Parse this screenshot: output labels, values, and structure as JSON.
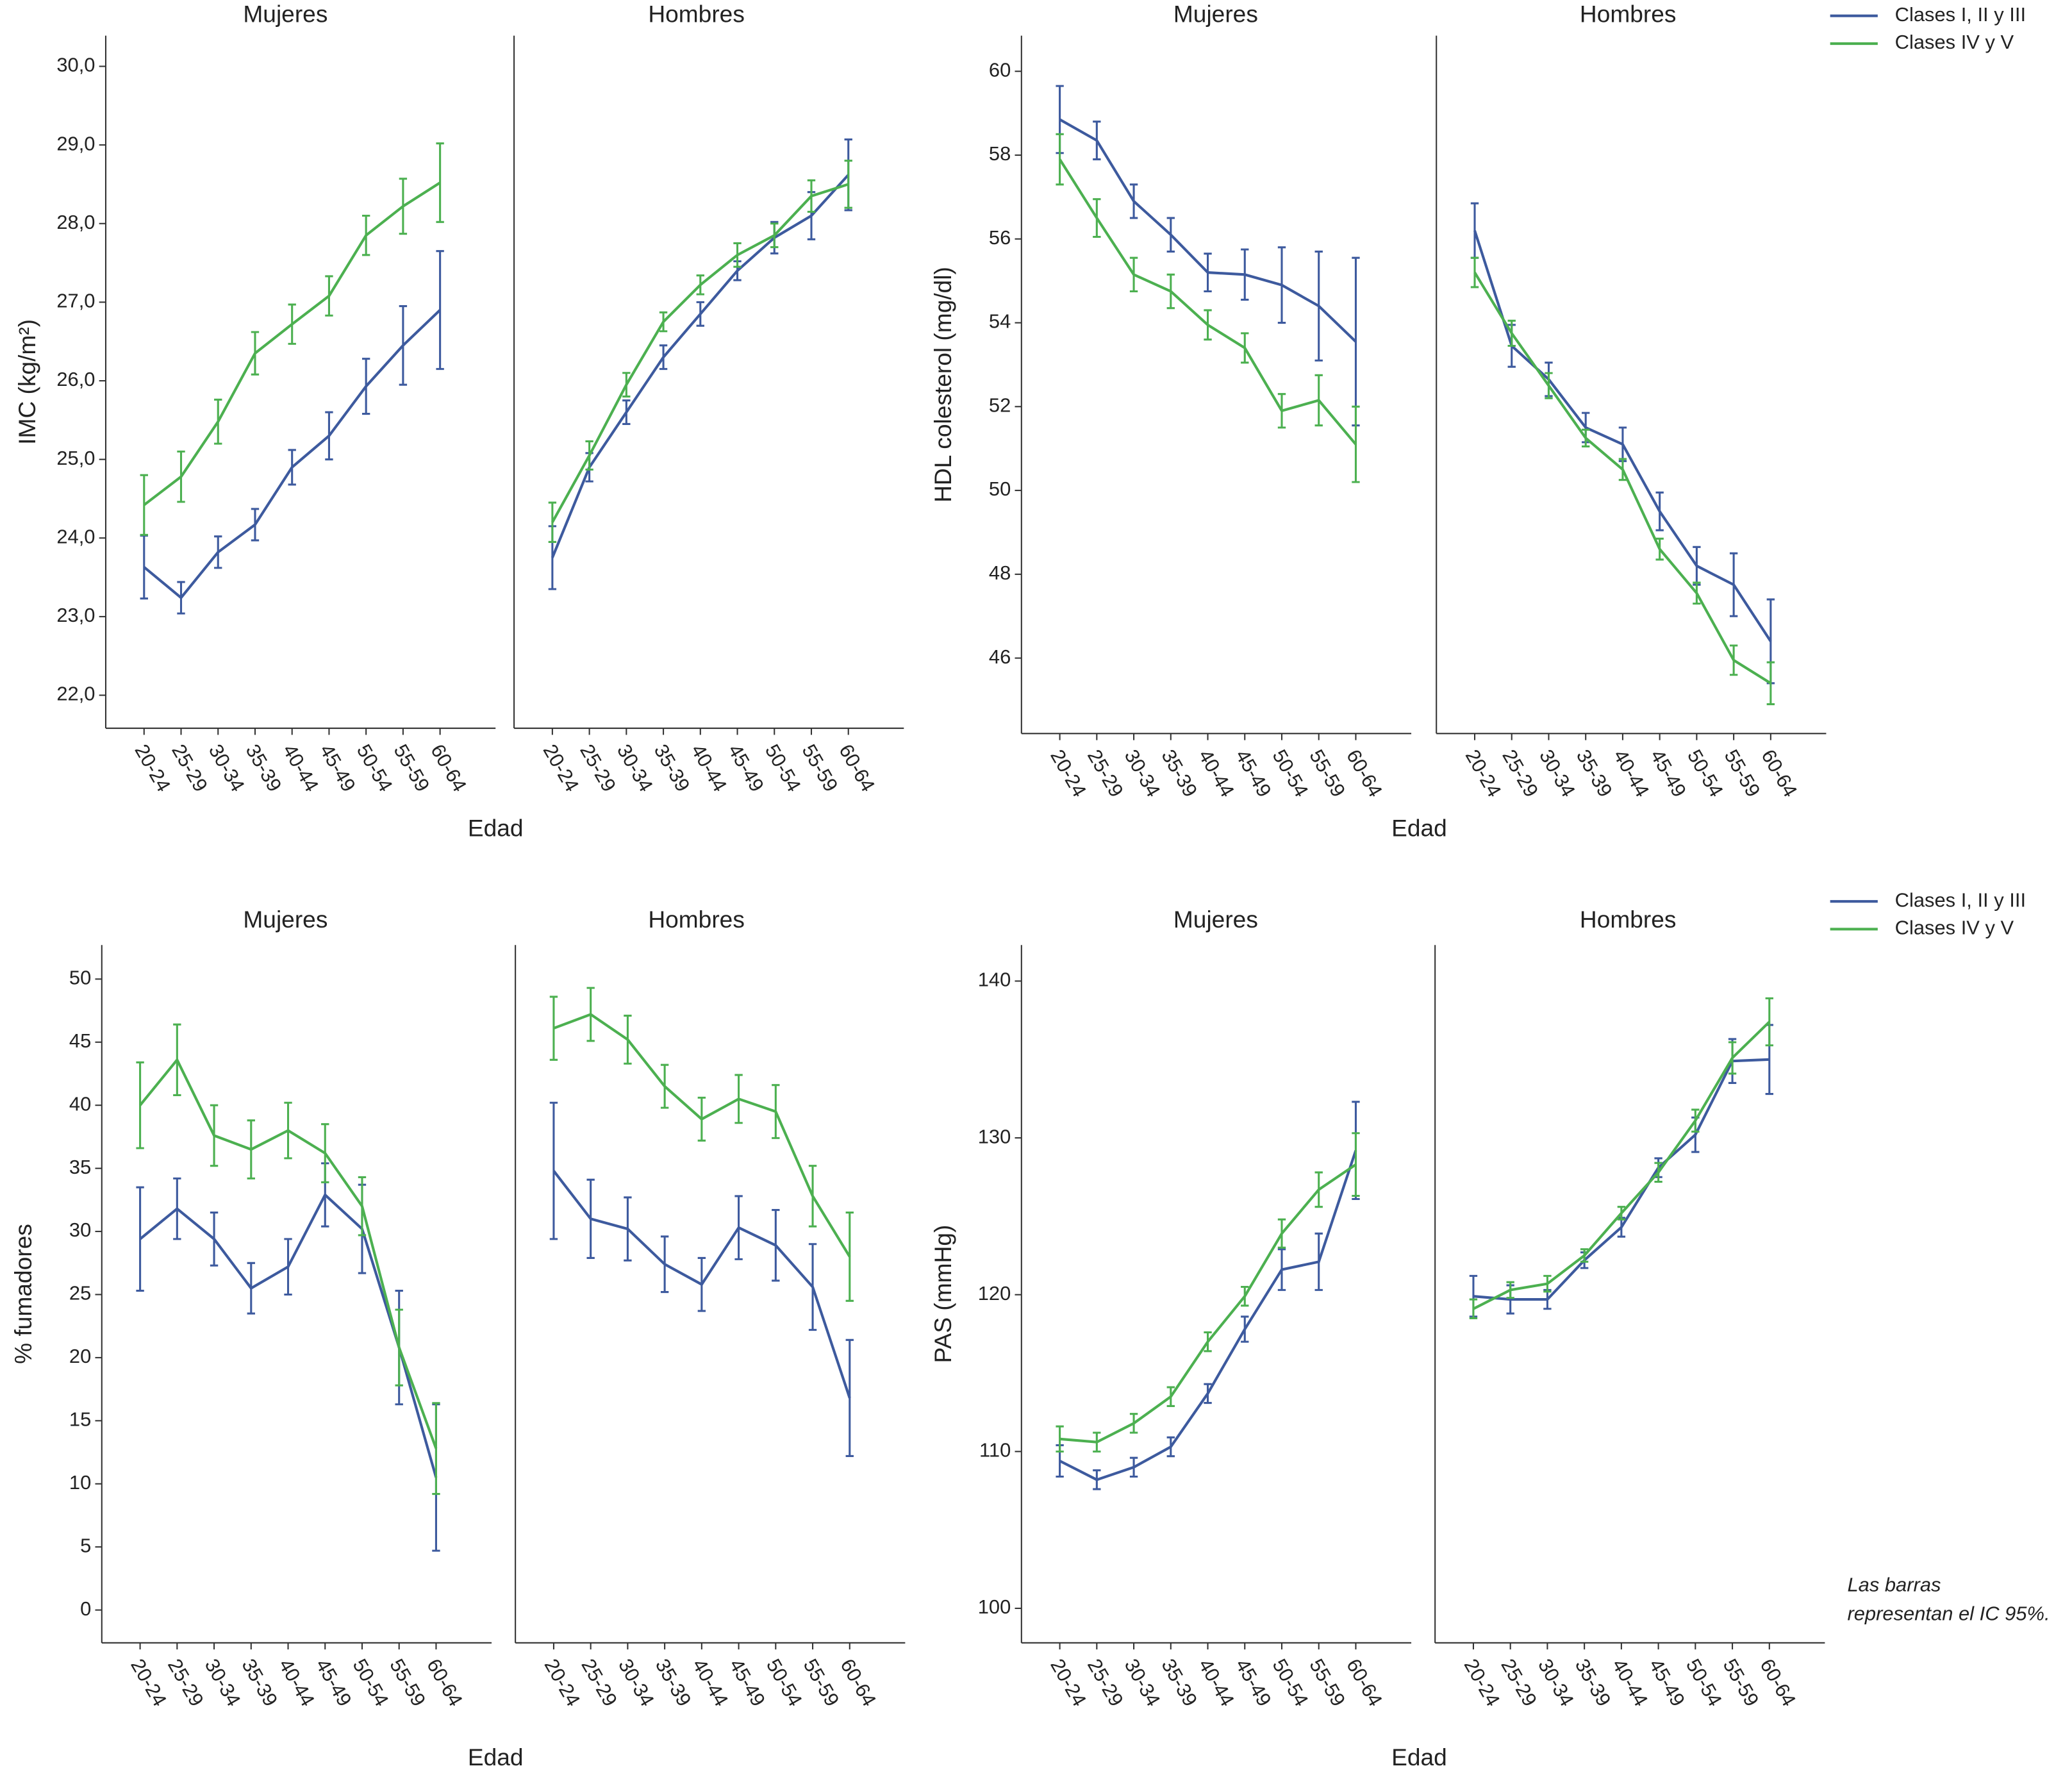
{
  "chart_data": [
    {
      "type": "line",
      "ylabel": "IMC (kg/m²)",
      "xlabel": "Edad",
      "categories": [
        "20-24",
        "25-29",
        "30-34",
        "35-39",
        "40-44",
        "45-49",
        "50-54",
        "55-59",
        "60-64"
      ],
      "ylim": [
        21.58,
        30.39
      ],
      "yticks": [
        {
          "value": 22,
          "label": "22,0"
        },
        {
          "value": 23,
          "label": "23,0"
        },
        {
          "value": 24,
          "label": "24,0"
        },
        {
          "value": 25,
          "label": "25,0"
        },
        {
          "value": 26,
          "label": "26,0"
        },
        {
          "value": 27,
          "label": "27,0"
        },
        {
          "value": 28,
          "label": "28,0"
        },
        {
          "value": 29,
          "label": "29,0"
        },
        {
          "value": 30,
          "label": "30,0"
        }
      ],
      "legend": false,
      "facets": [
        {
          "title": "Mujeres",
          "series": [
            {
              "color": "#3d5a9e",
              "values": [
                23.63,
                23.24,
                23.82,
                24.17,
                24.9,
                25.3,
                25.93,
                26.45,
                26.9
              ],
              "errors": [
                0.4,
                0.2,
                0.2,
                0.2,
                0.22,
                0.3,
                0.35,
                0.5,
                0.75
              ]
            },
            {
              "color": "#4cb050",
              "values": [
                24.42,
                24.78,
                25.48,
                26.35,
                26.72,
                27.08,
                27.85,
                28.22,
                28.52
              ],
              "errors": [
                0.38,
                0.32,
                0.28,
                0.27,
                0.25,
                0.25,
                0.25,
                0.35,
                0.5
              ]
            }
          ]
        },
        {
          "title": "Hombres",
          "series": [
            {
              "color": "#3d5a9e",
              "values": [
                23.75,
                24.9,
                25.6,
                26.3,
                26.85,
                27.4,
                27.82,
                28.1,
                28.62
              ],
              "errors": [
                0.4,
                0.18,
                0.15,
                0.15,
                0.15,
                0.12,
                0.2,
                0.3,
                0.45
              ]
            },
            {
              "color": "#4cb050",
              "values": [
                24.2,
                25.05,
                25.95,
                26.75,
                27.22,
                27.6,
                27.85,
                28.35,
                28.5
              ],
              "errors": [
                0.25,
                0.18,
                0.15,
                0.12,
                0.12,
                0.15,
                0.15,
                0.2,
                0.3
              ]
            }
          ]
        }
      ]
    },
    {
      "type": "line",
      "ylabel": "HDL colesterol (mg/dl)",
      "xlabel": "Edad",
      "categories": [
        "20-24",
        "25-29",
        "30-34",
        "35-39",
        "40-44",
        "45-49",
        "50-54",
        "55-59",
        "60-64"
      ],
      "ylim": [
        44.2,
        60.85
      ],
      "yticks": [
        46,
        48,
        50,
        52,
        54,
        56,
        58,
        60
      ],
      "legend": true,
      "facets": [
        {
          "title": "Mujeres",
          "series": [
            {
              "name": "Clases I, II y III",
              "color": "#3d5a9e",
              "values": [
                58.85,
                58.35,
                56.9,
                56.1,
                55.2,
                55.15,
                54.9,
                54.4,
                53.55
              ],
              "errors": [
                0.8,
                0.45,
                0.4,
                0.4,
                0.45,
                0.6,
                0.9,
                1.3,
                2.0
              ]
            },
            {
              "name": "Clases IV y V",
              "color": "#4cb050",
              "values": [
                57.9,
                56.5,
                55.15,
                54.75,
                53.95,
                53.4,
                51.9,
                52.15,
                51.1
              ],
              "errors": [
                0.6,
                0.45,
                0.4,
                0.4,
                0.35,
                0.35,
                0.4,
                0.6,
                0.9
              ]
            }
          ]
        },
        {
          "title": "Hombres",
          "series": [
            {
              "color": "#3d5a9e",
              "values": [
                56.2,
                53.45,
                52.65,
                51.5,
                51.1,
                49.5,
                48.2,
                47.75,
                46.4
              ],
              "errors": [
                0.65,
                0.5,
                0.4,
                0.35,
                0.4,
                0.45,
                0.45,
                0.75,
                1.0
              ]
            },
            {
              "color": "#4cb050",
              "values": [
                55.2,
                53.75,
                52.5,
                51.25,
                50.5,
                48.6,
                47.55,
                45.95,
                45.4
              ],
              "errors": [
                0.35,
                0.3,
                0.3,
                0.2,
                0.25,
                0.25,
                0.25,
                0.35,
                0.5
              ]
            }
          ]
        }
      ]
    },
    {
      "type": "line",
      "ylabel": "% fumadores",
      "xlabel": "Edad",
      "categories": [
        "20-24",
        "25-29",
        "30-34",
        "35-39",
        "40-44",
        "45-49",
        "50-54",
        "55-59",
        "60-64"
      ],
      "ylim": [
        -2.6,
        52.7
      ],
      "yticks": [
        0,
        5,
        10,
        15,
        20,
        25,
        30,
        35,
        40,
        45,
        50
      ],
      "legend": false,
      "facets": [
        {
          "title": "Mujeres",
          "series": [
            {
              "color": "#3d5a9e",
              "values": [
                29.4,
                31.8,
                29.4,
                25.5,
                27.2,
                32.9,
                30.2,
                20.8,
                10.5
              ],
              "errors": [
                4.1,
                2.4,
                2.1,
                2.0,
                2.2,
                2.5,
                3.5,
                4.5,
                5.8
              ]
            },
            {
              "color": "#4cb050",
              "values": [
                40,
                43.6,
                37.6,
                36.5,
                38,
                36.2,
                32,
                20.8,
                12.8
              ],
              "errors": [
                3.4,
                2.8,
                2.4,
                2.3,
                2.2,
                2.3,
                2.3,
                3.0,
                3.6
              ]
            }
          ]
        },
        {
          "title": "Hombres",
          "series": [
            {
              "color": "#3d5a9e",
              "values": [
                34.8,
                31,
                30.2,
                27.4,
                25.8,
                30.3,
                28.9,
                25.6,
                16.8
              ],
              "errors": [
                5.4,
                3.1,
                2.5,
                2.2,
                2.1,
                2.5,
                2.8,
                3.4,
                4.6
              ]
            },
            {
              "color": "#4cb050",
              "values": [
                46.1,
                47.2,
                45.2,
                41.5,
                38.9,
                40.5,
                39.5,
                32.8,
                28
              ],
              "errors": [
                2.5,
                2.1,
                1.9,
                1.7,
                1.7,
                1.9,
                2.1,
                2.4,
                3.5
              ]
            }
          ]
        }
      ]
    },
    {
      "type": "line",
      "ylabel": "PAS (mmHg)",
      "xlabel": "Edad",
      "categories": [
        "20-24",
        "25-29",
        "30-34",
        "35-39",
        "40-44",
        "45-49",
        "50-54",
        "55-59",
        "60-64"
      ],
      "ylim": [
        97.8,
        142.3
      ],
      "yticks": [
        100,
        110,
        120,
        130,
        140
      ],
      "legend": true,
      "facets": [
        {
          "title": "Mujeres",
          "series": [
            {
              "name": "Clases I, II y III",
              "color": "#3d5a9e",
              "values": [
                109.4,
                108.2,
                109,
                110.3,
                113.7,
                117.8,
                121.6,
                122.1,
                129.2
              ],
              "errors": [
                1.0,
                0.6,
                0.6,
                0.6,
                0.6,
                0.8,
                1.3,
                1.8,
                3.1
              ]
            },
            {
              "name": "Clases IV y V",
              "color": "#4cb050",
              "values": [
                110.8,
                110.6,
                111.8,
                113.5,
                117,
                119.9,
                123.9,
                126.7,
                128.3
              ],
              "errors": [
                0.8,
                0.6,
                0.6,
                0.6,
                0.6,
                0.6,
                0.9,
                1.1,
                2.0
              ]
            }
          ]
        },
        {
          "title": "Hombres",
          "series": [
            {
              "color": "#3d5a9e",
              "values": [
                119.9,
                119.7,
                119.7,
                122.2,
                124.3,
                128.1,
                130.2,
                134.9,
                135.0
              ],
              "errors": [
                1.3,
                0.9,
                0.6,
                0.5,
                0.6,
                0.6,
                1.1,
                1.4,
                2.2
              ]
            },
            {
              "color": "#4cb050",
              "values": [
                119.1,
                120.3,
                120.7,
                122.5,
                125.2,
                127.8,
                131.1,
                135.1,
                137.4
              ],
              "errors": [
                0.6,
                0.5,
                0.5,
                0.4,
                0.4,
                0.6,
                0.7,
                1.0,
                1.5
              ]
            }
          ]
        }
      ]
    }
  ],
  "note": [
    "Las barras",
    "representan el IC 95%."
  ]
}
